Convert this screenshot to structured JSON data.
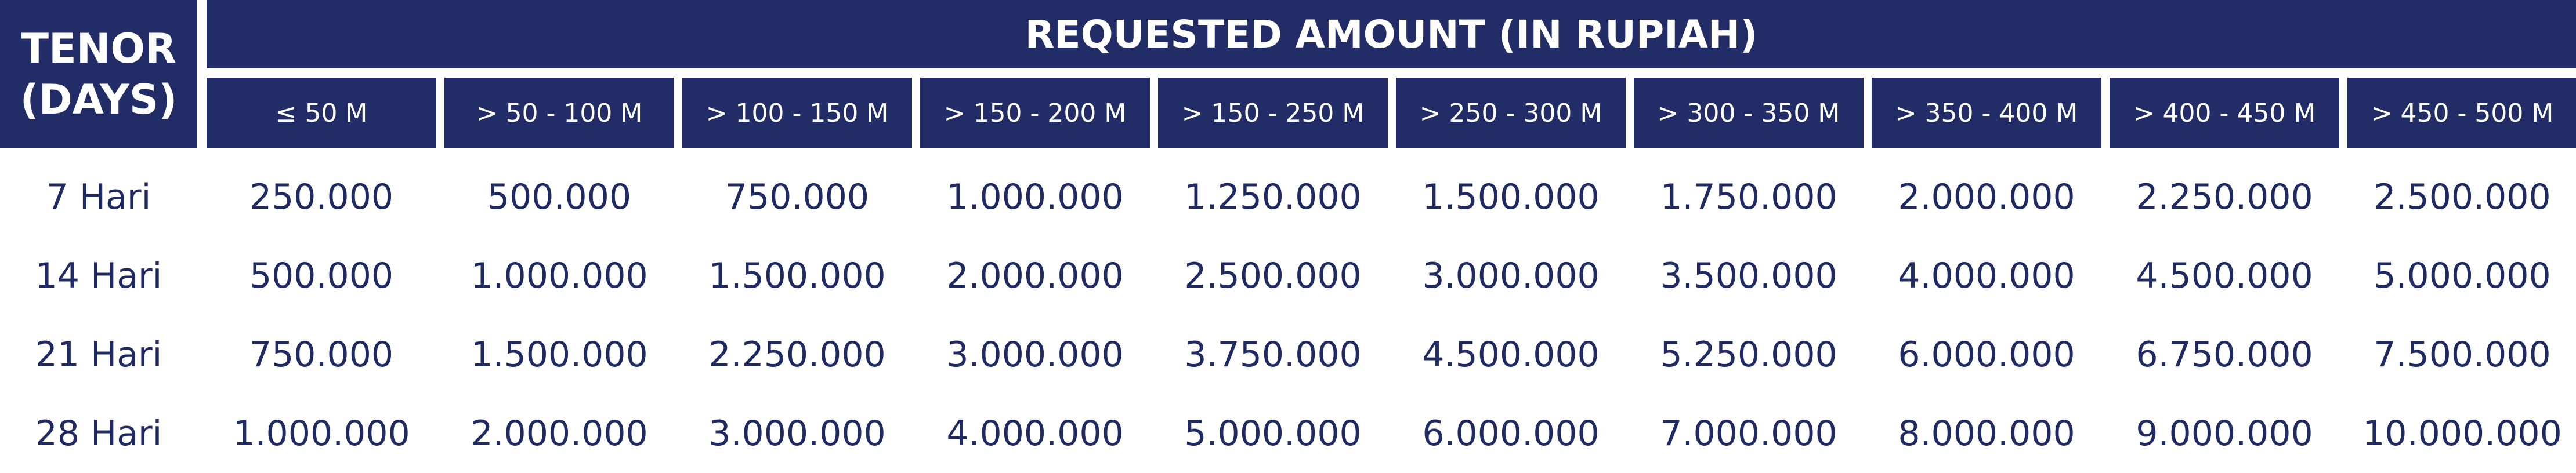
{
  "header": {
    "tenor_line1": "TENOR",
    "tenor_line2": "(DAYS)",
    "amount_title": "REQUESTED AMOUNT (IN RUPIAH)"
  },
  "ranges": [
    "≤ 50 M",
    "> 50 - 100 M",
    "> 100 - 150 M",
    "> 150 - 200 M",
    "> 150 - 250 M",
    "> 250 - 300 M",
    "> 300 - 350 M",
    "> 350 - 400 M",
    "> 400 - 450 M",
    "> 450 - 500 M"
  ],
  "rows": [
    {
      "tenor": "7 Hari",
      "values": [
        "250.000",
        "500.000",
        "750.000",
        "1.000.000",
        "1.250.000",
        "1.500.000",
        "1.750.000",
        "2.000.000",
        "2.250.000",
        "2.500.000"
      ]
    },
    {
      "tenor": "14 Hari",
      "values": [
        "500.000",
        "1.000.000",
        "1.500.000",
        "2.000.000",
        "2.500.000",
        "3.000.000",
        "3.500.000",
        "4.000.000",
        "4.500.000",
        "5.000.000"
      ]
    },
    {
      "tenor": "21 Hari",
      "values": [
        "750.000",
        "1.500.000",
        "2.250.000",
        "3.000.000",
        "3.750.000",
        "4.500.000",
        "5.250.000",
        "6.000.000",
        "6.750.000",
        "7.500.000"
      ]
    },
    {
      "tenor": "28 Hari",
      "values": [
        "1.000.000",
        "2.000.000",
        "3.000.000",
        "4.000.000",
        "5.000.000",
        "6.000.000",
        "7.000.000",
        "8.000.000",
        "9.000.000",
        "10.000.000"
      ]
    }
  ],
  "colors": {
    "header_bg": "#222c66",
    "header_text": "#ffffff",
    "body_text": "#1f2a63"
  }
}
